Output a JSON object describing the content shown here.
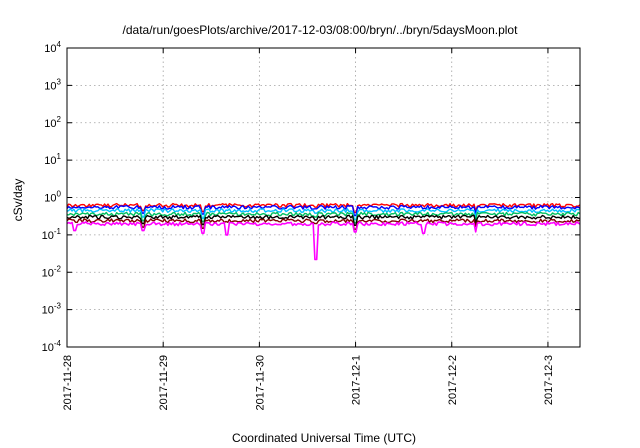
{
  "chart_data": {
    "type": "line",
    "title": "/data/run/goesPlots/archive/2017-12-03/08:00/bryn/../bryn/5daysMoon.plot",
    "xlabel": "Coordinated Universal Time (UTC)",
    "ylabel": "cSv/day",
    "yscale": "log",
    "ylim": [
      0.0001,
      10000
    ],
    "y_ticks": [
      {
        "base": "10",
        "exp": "4",
        "value": 10000
      },
      {
        "base": "10",
        "exp": "3",
        "value": 1000
      },
      {
        "base": "10",
        "exp": "2",
        "value": 100
      },
      {
        "base": "10",
        "exp": "1",
        "value": 10
      },
      {
        "base": "10",
        "exp": "0",
        "value": 1
      },
      {
        "base": "10",
        "exp": "-1",
        "value": 0.1
      },
      {
        "base": "10",
        "exp": "-2",
        "value": 0.01
      },
      {
        "base": "10",
        "exp": "-3",
        "value": 0.001
      },
      {
        "base": "10",
        "exp": "-4",
        "value": 0.0001
      }
    ],
    "xlim": [
      "2017-11-28T00:00",
      "2017-12-03T08:00"
    ],
    "x_ticks": [
      {
        "label": "2017-11-28",
        "value": "2017-11-28T00:00"
      },
      {
        "label": "2017-11-29",
        "value": "2017-11-29T00:00"
      },
      {
        "label": "2017-11-30",
        "value": "2017-11-30T00:00"
      },
      {
        "label": "2017-12-1",
        "value": "2017-12-01T00:00"
      },
      {
        "label": "2017-12-2",
        "value": "2017-12-02T00:00"
      },
      {
        "label": "2017-12-3",
        "value": "2017-12-03T00:00"
      }
    ],
    "grid": true,
    "series": [
      {
        "color": "#ff0000",
        "base": 0.62,
        "dips": [
          [
            "2017-11-28T19:00",
            0.45
          ],
          [
            "2017-11-29T10:00",
            0.42
          ],
          [
            "2017-11-30T14:00",
            0.55
          ],
          [
            "2017-12-01T00:00",
            0.4
          ],
          [
            "2017-12-02T06:00",
            0.45
          ]
        ]
      },
      {
        "color": "#0000ff",
        "base": 0.55,
        "dips": [
          [
            "2017-11-28T19:00",
            0.38
          ],
          [
            "2017-11-29T10:00",
            0.36
          ],
          [
            "2017-11-30T14:00",
            0.5
          ],
          [
            "2017-12-01T00:00",
            0.33
          ],
          [
            "2017-12-02T06:00",
            0.38
          ]
        ]
      },
      {
        "color": "#00bfff",
        "base": 0.45,
        "dips": [
          [
            "2017-11-28T19:00",
            0.3
          ],
          [
            "2017-11-29T10:00",
            0.28
          ],
          [
            "2017-11-30T14:00",
            0.38
          ],
          [
            "2017-12-01T00:00",
            0.26
          ],
          [
            "2017-12-02T06:00",
            0.3
          ]
        ]
      },
      {
        "color": "#00c060",
        "base": 0.36,
        "dips": [
          [
            "2017-11-28T19:00",
            0.24
          ],
          [
            "2017-11-29T10:00",
            0.23
          ],
          [
            "2017-11-30T14:00",
            0.3
          ],
          [
            "2017-12-01T00:00",
            0.21
          ],
          [
            "2017-12-02T06:00",
            0.25
          ]
        ]
      },
      {
        "color": "#000000",
        "base": 0.3,
        "dips": [
          [
            "2017-11-28T19:00",
            0.2
          ],
          [
            "2017-11-29T10:00",
            0.19
          ],
          [
            "2017-11-30T14:00",
            0.25
          ],
          [
            "2017-12-01T00:00",
            0.18
          ],
          [
            "2017-12-02T06:00",
            0.21
          ]
        ]
      },
      {
        "color": "#800000",
        "base": 0.24,
        "dips": [
          [
            "2017-11-28T19:00",
            0.16
          ],
          [
            "2017-11-29T10:00",
            0.15
          ],
          [
            "2017-11-30T14:00",
            0.2
          ],
          [
            "2017-12-01T00:00",
            0.14
          ],
          [
            "2017-12-02T06:00",
            0.17
          ]
        ]
      },
      {
        "color": "#ff00ff",
        "base": 0.2,
        "dips": [
          [
            "2017-11-28T02:00",
            0.13
          ],
          [
            "2017-11-28T19:00",
            0.13
          ],
          [
            "2017-11-29T10:00",
            0.11
          ],
          [
            "2017-11-29T16:00",
            0.1
          ],
          [
            "2017-11-30T14:00",
            0.022
          ],
          [
            "2017-12-01T00:00",
            0.12
          ],
          [
            "2017-12-01T17:00",
            0.11
          ],
          [
            "2017-12-02T06:00",
            0.12
          ]
        ]
      }
    ]
  }
}
